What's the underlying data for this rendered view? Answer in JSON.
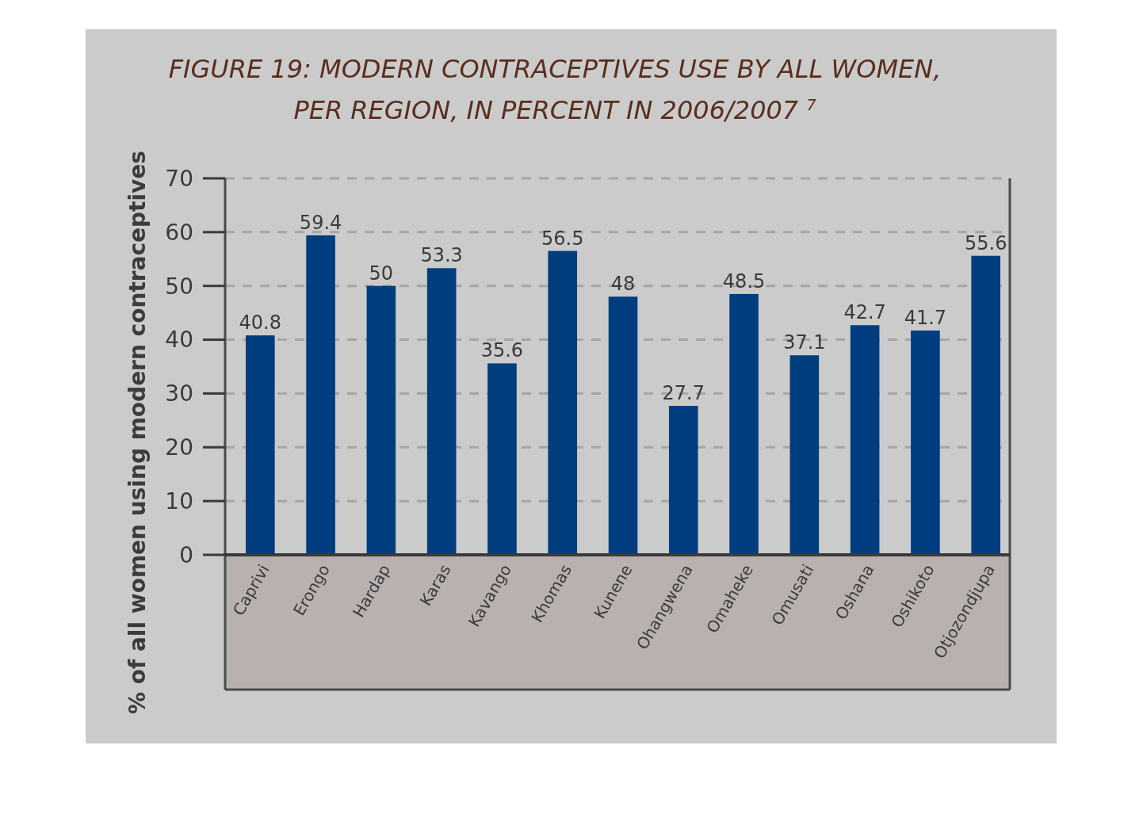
{
  "chart_data": {
    "type": "bar",
    "title": "FIGURE 19: MODERN CONTRACEPTIVES USE BY ALL WOMEN,\nPER REGION, IN PERCENT IN 2006/2007 $^{7}$",
    "ylabel": "% of all women using modern contraceptives",
    "categories": [
      "Caprivi",
      "Erongo",
      "Hardap",
      "Karas",
      "Kavango",
      "Khomas",
      "Kunene",
      "Ohangwena",
      "Omaheke",
      "Omusati",
      "Oshana",
      "Oshikoto",
      "Otjozondjupa"
    ],
    "values": [
      40.8,
      59.4,
      50,
      53.3,
      35.6,
      56.5,
      48,
      27.7,
      48.5,
      37.1,
      42.7,
      41.7,
      55.6
    ],
    "color": "#003d7f",
    "ylim": [
      0,
      70
    ],
    "yticks": [
      0,
      10,
      20,
      30,
      40,
      50,
      60,
      70
    ],
    "grid": "y",
    "data_labels": true
  }
}
